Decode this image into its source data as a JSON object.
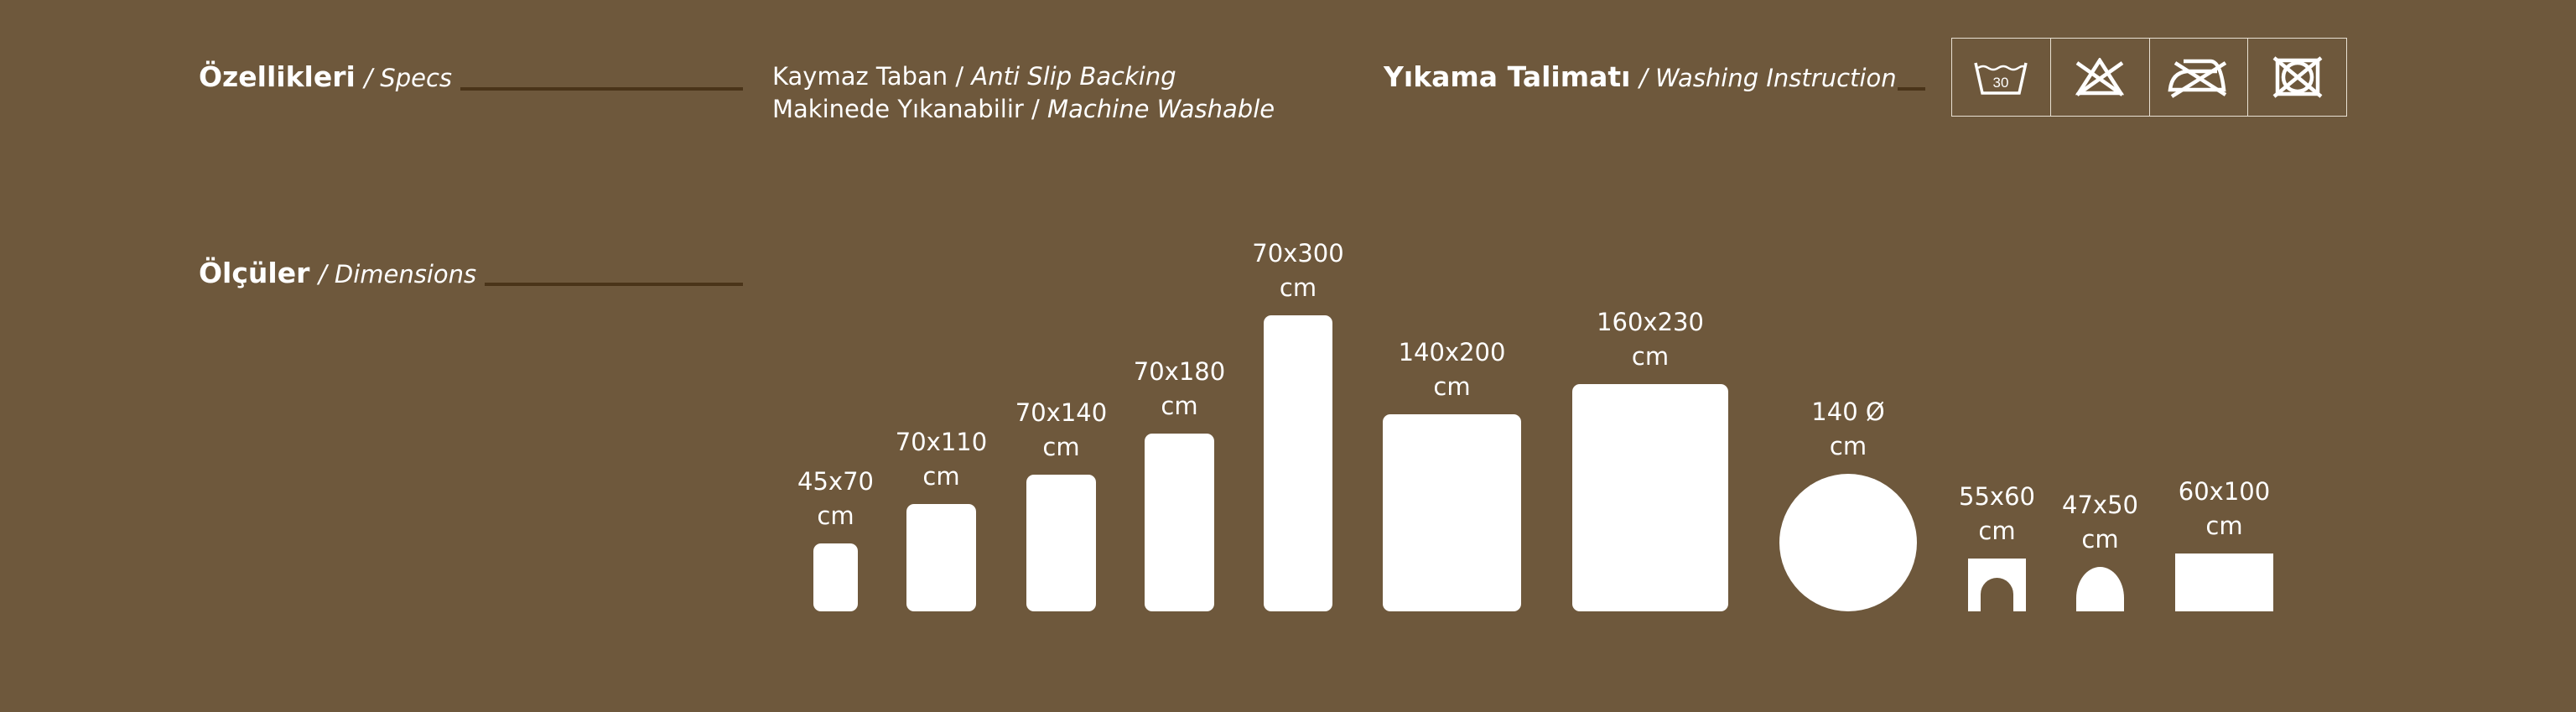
{
  "specs": {
    "title_tr": "Özellikleri",
    "title_en": "/ Specs"
  },
  "features": [
    {
      "tr": "Kaymaz Taban",
      "sep": " / ",
      "en": "Anti Slip Backing"
    },
    {
      "tr": "Makinede Yıkanabilir",
      "sep": " / ",
      "en": "Machine Washable"
    }
  ],
  "washing": {
    "title_tr": "Yıkama Talimatı",
    "title_en": "/ Washing Instruction",
    "icons": [
      {
        "name": "wash-30-icon",
        "text": "30"
      },
      {
        "name": "no-bleach-icon"
      },
      {
        "name": "no-iron-icon"
      },
      {
        "name": "no-tumble-dry-icon"
      }
    ]
  },
  "dimensions": {
    "title_tr": "Ölçüler",
    "title_en": "/ Dimensions",
    "unit": "cm",
    "items": [
      {
        "size": "45x70",
        "shape": "rectangle"
      },
      {
        "size": "70x110",
        "shape": "rectangle"
      },
      {
        "size": "70x140",
        "shape": "rectangle"
      },
      {
        "size": "70x180",
        "shape": "rectangle"
      },
      {
        "size": "70x300",
        "shape": "rectangle"
      },
      {
        "size": "140x200",
        "shape": "rectangle"
      },
      {
        "size": "160x230",
        "shape": "rectangle"
      },
      {
        "size": "140 Ø",
        "shape": "circle"
      },
      {
        "size": "55x60",
        "shape": "toilet-contour"
      },
      {
        "size": "47x50",
        "shape": "lid-cover"
      },
      {
        "size": "60x100",
        "shape": "rectangle"
      }
    ]
  },
  "colors": {
    "background": "#6e583c",
    "rule": "#4a3419",
    "foreground": "#ffffff"
  }
}
